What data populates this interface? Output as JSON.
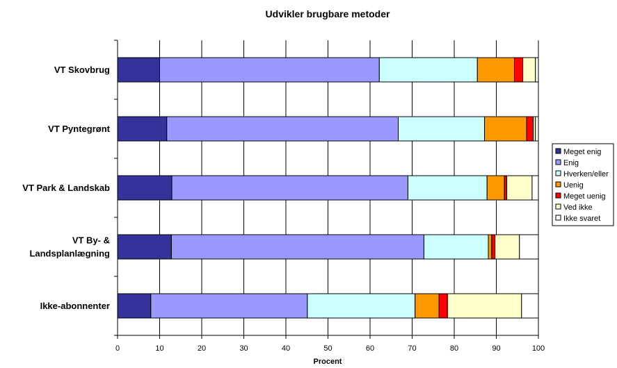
{
  "chart_data": {
    "type": "bar",
    "orientation": "horizontal",
    "stacked": true,
    "title": "Udvikler brugbare metoder",
    "xlabel": "Procent",
    "ylabel": "",
    "xlim": [
      0,
      100
    ],
    "xticks": [
      0,
      10,
      20,
      30,
      40,
      50,
      60,
      70,
      80,
      90,
      100
    ],
    "grid": "vertical",
    "legend_position": "right",
    "categories": [
      [
        "VT Skovbrug"
      ],
      [
        "VT Pyntegrønt"
      ],
      [
        "VT Park & Landskab"
      ],
      [
        "VT By- &",
        "Landsplanlægning"
      ],
      [
        "Ikke-abonnenter"
      ]
    ],
    "series": [
      {
        "name": "Meget enig",
        "color": "#333399",
        "values": [
          10.0,
          11.7,
          12.9,
          12.8,
          7.9
        ]
      },
      {
        "name": "Enig",
        "color": "#9999ff",
        "values": [
          52.2,
          55.0,
          56.1,
          60.0,
          37.2
        ]
      },
      {
        "name": "Hverken/eller",
        "color": "#ccffff",
        "values": [
          23.3,
          20.5,
          18.8,
          15.3,
          25.6
        ]
      },
      {
        "name": "Uenig",
        "color": "#ff9900",
        "values": [
          8.8,
          10.0,
          4.1,
          0.8,
          5.7
        ]
      },
      {
        "name": "Meget uenig",
        "color": "#ff0000",
        "values": [
          2.0,
          1.6,
          0.6,
          0.8,
          2.0
        ]
      },
      {
        "name": "Ved ikke",
        "color": "#ffffcc",
        "values": [
          3.0,
          0.5,
          6.0,
          5.8,
          17.6
        ]
      },
      {
        "name": "Ikke svaret",
        "color": "#ffffff",
        "values": [
          0.7,
          0.7,
          1.5,
          4.5,
          4.0
        ]
      }
    ]
  }
}
